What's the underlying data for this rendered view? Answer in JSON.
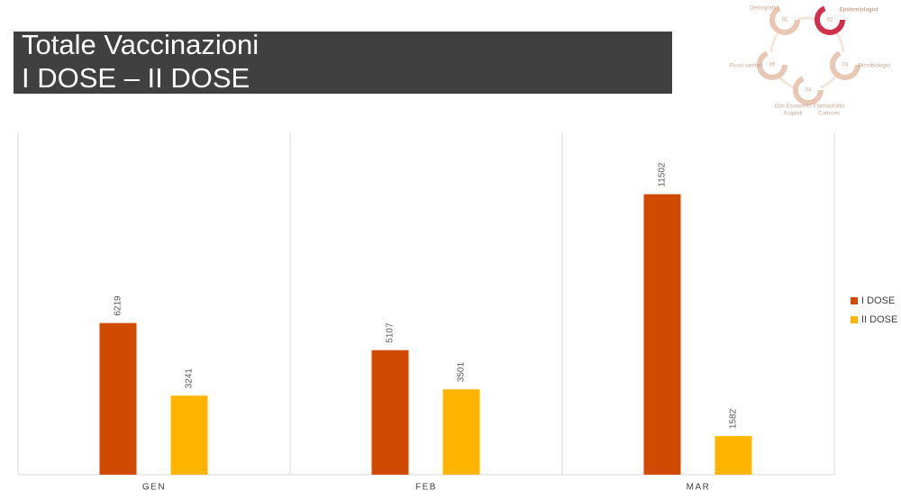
{
  "chart_data": {
    "type": "bar",
    "title": "Totale Vaccinazioni",
    "subtitle": "I DOSE – II DOSE",
    "categories": [
      "GEN",
      "FEB",
      "MAR"
    ],
    "series": [
      {
        "name": "I DOSE",
        "color": "#d04a02",
        "values": [
          6219,
          5107,
          11502
        ]
      },
      {
        "name": "II DOSE",
        "color": "#ffb400",
        "values": [
          3241,
          3501,
          1582
        ]
      }
    ],
    "ylim": [
      0,
      14000
    ],
    "legend": "right"
  },
  "header_diagram": {
    "items": [
      {
        "number": "01",
        "lines": [
          "Demografici"
        ]
      },
      {
        "number": "02",
        "lines": [
          "Epidemiologici"
        ]
      },
      {
        "number": "03",
        "lines": [
          "Microbiologici"
        ]
      },
      {
        "number": "04",
        "lines": [
          "Dati Economici",
          "Acquisti"
        ]
      },
      {
        "number": "05",
        "lines": [
          "Flussi sanitari"
        ]
      }
    ],
    "extra_lines": [
      "Farmaceutici",
      "Consumi"
    ]
  }
}
